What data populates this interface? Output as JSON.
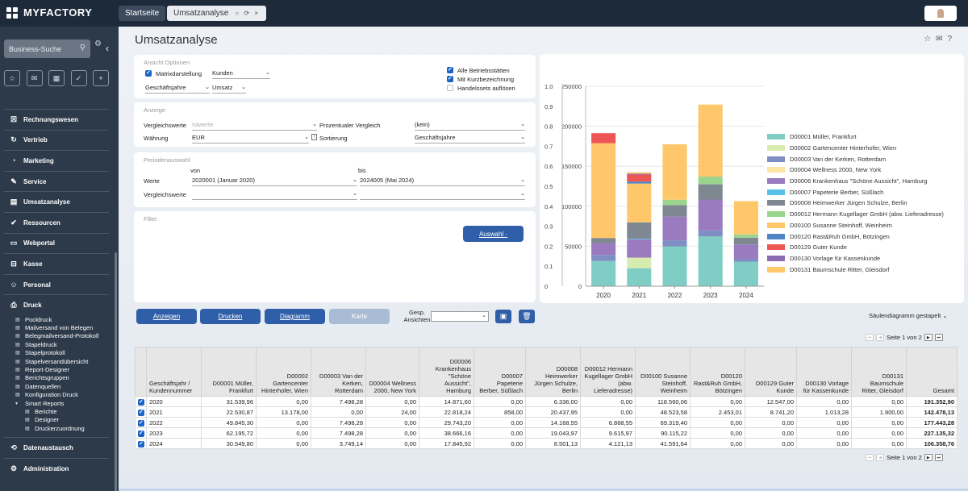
{
  "app": {
    "logo": "MYFACTORY"
  },
  "tabs": [
    {
      "label": "Startseite"
    },
    {
      "label": "Umsatzanalyse",
      "icons": "○ ⟳ ×"
    }
  ],
  "sidebar": {
    "search_value": "Business-Suche",
    "nav": [
      {
        "label": "Rechnungswesen",
        "icon": "☒"
      },
      {
        "label": "Vertrieb",
        "icon": "↻"
      },
      {
        "label": "Marketing",
        "icon": "◔"
      },
      {
        "label": "Service",
        "icon": "✎"
      },
      {
        "label": "Umsatzanalyse",
        "icon": "▤"
      },
      {
        "label": "Ressourcen",
        "icon": "✔"
      },
      {
        "label": "Webportal",
        "icon": "▭"
      },
      {
        "label": "Kasse",
        "icon": "⊟"
      },
      {
        "label": "Personal",
        "icon": "☺"
      },
      {
        "label": "Druck",
        "icon": "⎙"
      }
    ],
    "druck_items": [
      "Pooldruck",
      "Mailversand von Belegen",
      "Belegmailversand-Protokoll",
      "Stapeldruck",
      "Stapelprotokoll",
      "Stapelversandübersicht",
      "Report-Designer",
      "Berichtsgruppen",
      "Datenquellen",
      "Konfiguration Druck",
      "Smart Reports"
    ],
    "smart_reports_items": [
      "Berichte",
      "Designer",
      "Druckerzuordnung"
    ],
    "bottom_nav": [
      {
        "label": "Datenaustausch",
        "icon": "⟲"
      },
      {
        "label": "Administration",
        "icon": "⚙"
      }
    ]
  },
  "page": {
    "title": "Umsatzanalyse"
  },
  "ansicht": {
    "label": "Ansicht Optionen",
    "matrix_label": "Matrixdarstellung",
    "matrix_value": "Kunden",
    "period_value": "Geschäftsjahre",
    "measure_value": "Umsatz",
    "alle_label": "Alle Betriebsstätten",
    "kurz_label": "Mit Kurzbezeichnung",
    "handels_label": "Handelssets auflösen"
  },
  "anzeige": {
    "label": "Anzeige",
    "vergleichswerte_label": "Vergleichswerte",
    "vergleichswerte_placeholder": "Istwerte",
    "prozent_label": "Prozentualer Vergleich",
    "prozent_value": "(kein)",
    "waehrung_label": "Währung",
    "waehrung_value": "EUR",
    "sortierung_label": "Sortierung",
    "sortierung_value": "Geschäftsjahre"
  },
  "periode": {
    "label": "Periodenauswahl",
    "von_label": "von",
    "bis_label": "bis",
    "werte_label": "Werte",
    "von_value": "2020001 (Januar 2020)",
    "bis_value": "2024005 (Mai 2024)",
    "vergleichswerte_label": "Vergleichswerte"
  },
  "filter": {
    "label": "Filter",
    "auswahl_button": "Auswahl ·"
  },
  "actions": {
    "anzeigen": "Anzeigen",
    "drucken": "Drucken",
    "diagramm": "Diagramm",
    "karte": "Karte",
    "gesp_ansichten_label": "Gesp. Ansichten",
    "chart_type": "Säulendiagramm gestapelt"
  },
  "pager": {
    "text": "Seite 1 von 2"
  },
  "chart_data": {
    "type": "bar",
    "stacked": true,
    "categories": [
      "2020",
      "2021",
      "2022",
      "2023",
      "2024"
    ],
    "ylim": [
      0,
      250000
    ],
    "yticks": [
      "0",
      "50000",
      "100000",
      "150000",
      "200000",
      "250000"
    ],
    "y2ticks": [
      "0",
      "0.1",
      "0.2",
      "0.3",
      "0.4",
      "0.5",
      "0.6",
      "0.7",
      "0.8",
      "0.9",
      "1.0"
    ],
    "series": [
      {
        "name": "D00001  Müller, Frankfurt",
        "color": "#7fcdc4",
        "values": [
          31539.96,
          22530.87,
          49845.3,
          62195.72,
          30549.8
        ]
      },
      {
        "name": "D00002  Gartencenter Hinterhofer, Wien",
        "color": "#d9ecb0",
        "values": [
          0,
          13178.0,
          0,
          0,
          0
        ]
      },
      {
        "name": "D00003  Van der Kerken, Rotterdam",
        "color": "#7f8fc4",
        "values": [
          7498.28,
          0,
          7498.28,
          7498.28,
          3749.14
        ]
      },
      {
        "name": "D00004  Wellness 2000, New York",
        "color": "#fbe7a3",
        "values": [
          0,
          24.0,
          0,
          0,
          0
        ]
      },
      {
        "name": "D00006  Krankenhaus \"Schöne Aussicht\", Hamburg",
        "color": "#9a7bbf",
        "values": [
          14871.6,
          22818.24,
          29743.2,
          38666.16,
          17845.92
        ]
      },
      {
        "name": "D00007  Papeterie Berber, Süßlach",
        "color": "#5bc0e9",
        "values": [
          0,
          858.0,
          0,
          0,
          0
        ]
      },
      {
        "name": "D00008  Heimwerker Jürgen Schulze, Berlin",
        "color": "#7f8890",
        "values": [
          6336.0,
          20437.95,
          14168.55,
          19043.97,
          8501.13
        ]
      },
      {
        "name": "D00012  Hermann Kugellager GmbH (abw. Lieferadresse)",
        "color": "#9bd48c",
        "values": [
          0,
          0,
          6868.55,
          9615.97,
          4121.13
        ]
      },
      {
        "name": "D00100  Susanne Steinhoff, Weinheim",
        "color": "#fdc76a",
        "values": [
          118560.06,
          48523.58,
          69319.4,
          90115.22,
          41591.64
        ]
      },
      {
        "name": "D00120  Rast&Ruh GmbH, Bötzingen",
        "color": "#4f86c6",
        "values": [
          0,
          2453.01,
          0,
          0,
          0
        ]
      },
      {
        "name": "D00129  Guter Kunde",
        "color": "#ee5555",
        "values": [
          12547.0,
          8741.2,
          0,
          0,
          0
        ]
      },
      {
        "name": "D00130  Vorlage für Kassenkunde",
        "color": "#8c6bb5",
        "values": [
          0,
          1013.28,
          0,
          0,
          0
        ]
      },
      {
        "name": "D00131  Baumschule Ritter, Gleisdorf",
        "color": "#fdc76a",
        "values": [
          0,
          1900.0,
          0,
          0,
          0
        ]
      }
    ]
  },
  "table": {
    "headers": [
      "",
      "Geschäftsjahr / Kundennummer",
      "D00001 Müller, Frankfurt",
      "D00002 Gartencenter Hinterhofer, Wien",
      "D00003 Van der Kerken, Rotterdam",
      "D00004 Wellness 2000, New York",
      "D00006 Krankenhaus \"Schöne Aussicht\", Hamburg",
      "D00007 Papeterie Berber, Süßlach",
      "D00008 Heimwerker Jürgen Schulze, Berlin",
      "D00012 Hermann Kugellager GmbH (abw. Lieferadresse)",
      "D00100 Susanne Steinhoff, Weinheim",
      "D00120 Rast&Ruh GmbH, Bötzingen",
      "D00129 Guter Kunde",
      "D00130 Vorlage für Kassenkunde",
      "D00131 Baumschule Ritter, Gleisdorf",
      "Gesamt"
    ],
    "rows": [
      [
        "2020",
        "31.539,96",
        "0,00",
        "7.498,28",
        "0,00",
        "14.871,60",
        "0,00",
        "6.336,00",
        "0,00",
        "118.560,06",
        "0,00",
        "12.547,00",
        "0,00",
        "0,00",
        "191.352,90"
      ],
      [
        "2021",
        "22.530,87",
        "13.178,00",
        "0,00",
        "24,00",
        "22.818,24",
        "858,00",
        "20.437,95",
        "0,00",
        "48.523,58",
        "2.453,01",
        "8.741,20",
        "1.013,28",
        "1.900,00",
        "142.478,13"
      ],
      [
        "2022",
        "49.845,30",
        "0,00",
        "7.498,28",
        "0,00",
        "29.743,20",
        "0,00",
        "14.168,55",
        "6.868,55",
        "69.319,40",
        "0,00",
        "0,00",
        "0,00",
        "0,00",
        "177.443,28"
      ],
      [
        "2023",
        "62.195,72",
        "0,00",
        "7.498,28",
        "0,00",
        "38.666,16",
        "0,00",
        "19.043,97",
        "9.615,97",
        "90.115,22",
        "0,00",
        "0,00",
        "0,00",
        "0,00",
        "227.135,32"
      ],
      [
        "2024",
        "30.549,80",
        "0,00",
        "3.749,14",
        "0,00",
        "17.845,92",
        "0,00",
        "8.501,13",
        "4.121,13",
        "41.591,64",
        "0,00",
        "0,00",
        "0,00",
        "0,00",
        "106.358,76"
      ]
    ]
  }
}
